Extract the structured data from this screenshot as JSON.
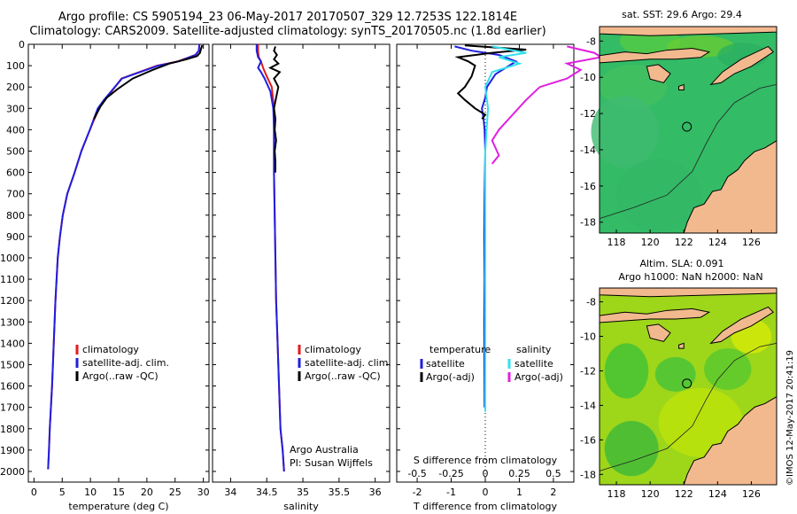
{
  "header": {
    "line1": "Argo profile: CS 5905194_23 06-May-2017 20170507_329 12.7253S 122.1814E",
    "line2": "Climatology: CARS2009. Satellite-adjusted climatology: synTS_20170505.nc (1.8d earlier)"
  },
  "side_stamp": "©IMOS 12-May-2017 20:41:19",
  "colors": {
    "climatology": "#e41a1c",
    "satellite": "#1f1fe0",
    "argo": "#000000",
    "satellite_s": "#33e0ee",
    "argo_s": "#e020e0",
    "land": "#f2b98f",
    "sea_sst": "#33bb66",
    "sea_sla": "#9ed61a"
  },
  "chart_data": [
    {
      "type": "line",
      "panel": "temperature",
      "xlabel": "temperature (deg C)",
      "ylabel": "",
      "xlim": [
        -1,
        31
      ],
      "ylim": [
        2050,
        0
      ],
      "xticks": [
        0,
        5,
        10,
        15,
        20,
        25,
        30
      ],
      "yticks": [
        0,
        100,
        200,
        300,
        400,
        500,
        600,
        700,
        800,
        900,
        1000,
        1100,
        1200,
        1300,
        1400,
        1500,
        1600,
        1700,
        1800,
        1900,
        2000
      ],
      "legend": [
        "climatology",
        "satellite-adj. clim.",
        "Argo(..raw -QC)"
      ],
      "series": [
        {
          "name": "climatology",
          "role": "climatology",
          "x": [
            29.3,
            29.2,
            28.6,
            25.5,
            21.8,
            15.5,
            12.6,
            11.5,
            9.9,
            8.4,
            7.2,
            5.9,
            5.1,
            4.6,
            4.2,
            3.8,
            3.5,
            3.2,
            3.0,
            2.8,
            2.65,
            2.5
          ],
          "y": [
            0,
            30,
            50,
            80,
            100,
            160,
            260,
            300,
            400,
            500,
            600,
            700,
            800,
            900,
            1000,
            1200,
            1400,
            1600,
            1700,
            1800,
            1900,
            1990
          ]
        },
        {
          "name": "satellite-adj. clim.",
          "role": "satellite",
          "x": [
            29.3,
            29.2,
            28.6,
            25.6,
            22.0,
            15.6,
            12.4,
            11.3,
            9.9,
            8.4,
            7.2,
            5.9,
            5.1,
            4.6,
            4.2,
            3.8,
            3.5,
            3.2,
            3.0,
            2.8,
            2.65,
            2.5
          ],
          "y": [
            0,
            30,
            50,
            80,
            100,
            160,
            260,
            300,
            400,
            500,
            600,
            700,
            800,
            900,
            1000,
            1200,
            1400,
            1600,
            1700,
            1800,
            1900,
            1990
          ]
        },
        {
          "name": "Argo(..raw -QC)",
          "role": "argo",
          "x": [
            29.8,
            29.6,
            29.4,
            28.9,
            27.0,
            24.0,
            21.0,
            17.5,
            14.8,
            12.9,
            11.8,
            10.6
          ],
          "y": [
            5,
            20,
            40,
            55,
            70,
            90,
            120,
            160,
            210,
            250,
            290,
            350
          ]
        }
      ]
    },
    {
      "type": "line",
      "panel": "salinity",
      "xlabel": "salinity",
      "ylabel": "",
      "xlim": [
        33.75,
        36.2
      ],
      "ylim": [
        2050,
        0
      ],
      "xticks": [
        34,
        34.5,
        35,
        35.5,
        36
      ],
      "legend": [
        "climatology",
        "satellite-adj. clim.",
        "Argo(..raw -QC)"
      ],
      "annotations": [
        "Argo Australia",
        "PI: Susan Wijffels"
      ],
      "series": [
        {
          "name": "climatology",
          "role": "climatology",
          "x": [
            34.38,
            34.38,
            34.39,
            34.42,
            34.45,
            34.5,
            34.57,
            34.6,
            34.6,
            34.6,
            34.6,
            34.61,
            34.62,
            34.63,
            34.65,
            34.67,
            34.69,
            34.72,
            34.74
          ],
          "y": [
            0,
            30,
            60,
            80,
            110,
            150,
            200,
            300,
            400,
            500,
            600,
            800,
            1000,
            1200,
            1400,
            1600,
            1800,
            1900,
            2000
          ]
        },
        {
          "name": "satellite-adj. clim.",
          "role": "satellite",
          "x": [
            34.36,
            34.36,
            34.38,
            34.42,
            34.38,
            34.42,
            34.47,
            34.55,
            34.59,
            34.6,
            34.6,
            34.6,
            34.61,
            34.62,
            34.63,
            34.65,
            34.67,
            34.69,
            34.72,
            34.74
          ],
          "y": [
            0,
            30,
            60,
            80,
            110,
            130,
            160,
            220,
            300,
            400,
            500,
            600,
            800,
            1000,
            1200,
            1400,
            1600,
            1800,
            1900,
            2000
          ]
        },
        {
          "name": "Argo(..raw -QC)",
          "role": "argo",
          "x": [
            34.62,
            34.6,
            34.64,
            34.6,
            34.66,
            34.55,
            34.68,
            34.6,
            34.66,
            34.63,
            34.6,
            34.62,
            34.61,
            34.63,
            34.61,
            34.62,
            34.62
          ],
          "y": [
            10,
            30,
            50,
            70,
            90,
            110,
            130,
            160,
            200,
            250,
            300,
            350,
            400,
            450,
            500,
            550,
            600
          ]
        }
      ]
    },
    {
      "type": "line",
      "panel": "difference",
      "xlabel": "T difference from climatology",
      "xlabel_top": "S difference from climatology",
      "xlim": [
        -2.6,
        2.6
      ],
      "ylim": [
        2050,
        0
      ],
      "xticks": [
        -2,
        -1,
        0,
        1,
        2
      ],
      "xticks_s": [
        "-0.5",
        "-0.25",
        "0",
        "0.25",
        "0.5"
      ],
      "xticks_s_values": [
        -0.5,
        -0.25,
        0,
        0.25,
        0.5
      ],
      "legend_headers": [
        "temperature",
        "salinity"
      ],
      "legend_t": [
        "satellite",
        "Argo(-adj)"
      ],
      "legend_s": [
        "satellite",
        "Argo(-adj)"
      ],
      "series": [
        {
          "name": "temperature satellite",
          "role": "satellite",
          "x": [
            -0.9,
            -0.4,
            0.4,
            0.9,
            0.7,
            0.3,
            0.05,
            0.0,
            -0.1,
            -0.05,
            -0.02,
            0.0,
            -0.02,
            -0.03,
            -0.02,
            -0.03,
            -0.02
          ],
          "y": [
            10,
            30,
            50,
            80,
            100,
            140,
            200,
            250,
            300,
            350,
            400,
            500,
            700,
            900,
            1100,
            1300,
            1700
          ]
        },
        {
          "name": "temperature Argo(-adj)",
          "role": "argo",
          "x": [
            -0.6,
            0.3,
            1.2,
            0.2,
            -0.8,
            -0.5,
            -0.3,
            -0.4,
            -0.6,
            -0.8,
            -0.6,
            -0.3,
            0.0,
            -0.1
          ],
          "y": [
            5,
            15,
            25,
            40,
            60,
            80,
            100,
            150,
            200,
            230,
            260,
            300,
            330,
            350
          ]
        },
        {
          "name": "salinity satellite",
          "role": "satellite_s",
          "x": [
            0.05,
            0.3,
            0.1,
            0.25,
            0.05,
            0.0,
            0.02,
            0.01,
            0.0,
            0.0,
            0.0,
            0.0,
            0.0,
            0.0,
            0.0
          ],
          "y": [
            10,
            40,
            60,
            90,
            130,
            200,
            300,
            400,
            500,
            700,
            900,
            1100,
            1300,
            1600,
            1720
          ]
        },
        {
          "name": "salinity Argo(-adj)",
          "role": "argo_s",
          "x": [
            0.6,
            0.8,
            0.85,
            0.6,
            0.7,
            0.6,
            0.4,
            0.3,
            0.2,
            0.1,
            0.05,
            0.1,
            0.05
          ],
          "y": [
            10,
            40,
            60,
            90,
            120,
            160,
            200,
            260,
            330,
            400,
            450,
            520,
            560
          ]
        }
      ]
    },
    {
      "type": "heatmap",
      "panel": "sst_map",
      "title": "sat. SST: 29.6  Argo: 29.4",
      "xlim": [
        117,
        127.5
      ],
      "ylim": [
        -18.6,
        -7.2
      ],
      "xticks": [
        118,
        120,
        122,
        124,
        126
      ],
      "yticks": [
        -8,
        -10,
        -12,
        -14,
        -16,
        -18
      ],
      "argo_position": {
        "lon": 122.18,
        "lat": -12.73
      }
    },
    {
      "type": "heatmap",
      "panel": "sla_map",
      "title": "Altim. SLA: 0.091",
      "subtitle": "Argo h1000: NaN h2000: NaN",
      "xlim": [
        117,
        127.5
      ],
      "ylim": [
        -18.6,
        -7.2
      ],
      "xticks": [
        118,
        120,
        122,
        124,
        126
      ],
      "yticks": [
        -8,
        -10,
        -12,
        -14,
        -16,
        -18
      ],
      "argo_position": {
        "lon": 122.18,
        "lat": -12.73
      }
    }
  ]
}
